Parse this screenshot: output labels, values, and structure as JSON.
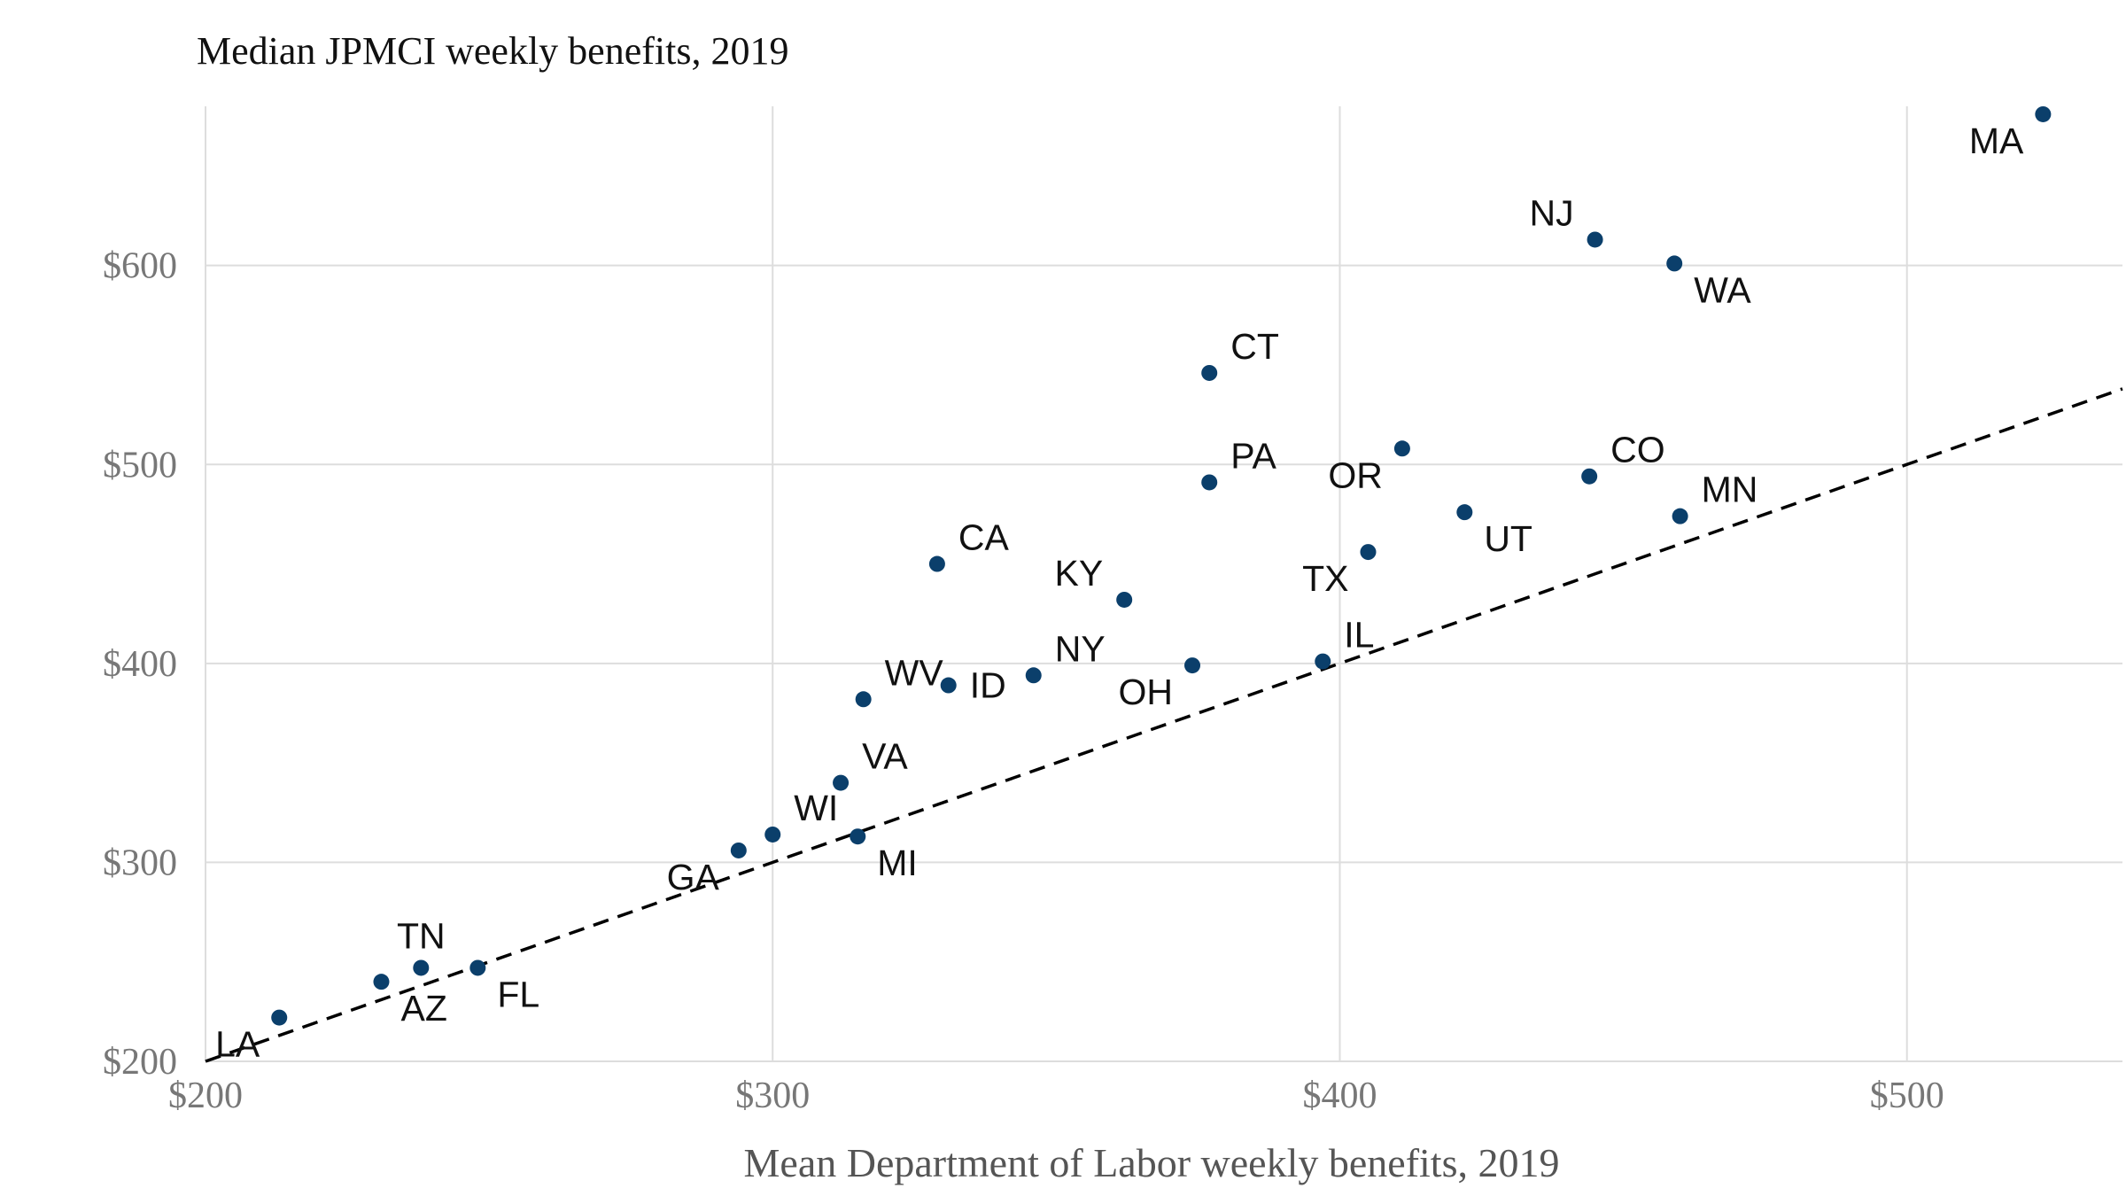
{
  "chart_data": {
    "type": "scatter",
    "title": "Median JPMCI weekly benefits, 2019",
    "xlabel": "Mean Department of Labor weekly benefits, 2019",
    "ylabel": "",
    "xlim": [
      200,
      538
    ],
    "ylim": [
      200,
      680
    ],
    "x_ticks": [
      200,
      300,
      400,
      500
    ],
    "x_tick_labels": [
      "$200",
      "$300",
      "$400",
      "$500"
    ],
    "y_ticks": [
      200,
      300,
      400,
      500,
      600
    ],
    "y_tick_labels": [
      "$200",
      "$300",
      "$400",
      "$500",
      "$600"
    ],
    "grid": true,
    "point_color": "#0b3f6b",
    "reference_line": {
      "style": "dashed",
      "color": "#000000",
      "slope": 1,
      "intercept": 0
    },
    "points": [
      {
        "label": "LA",
        "x": 213,
        "y": 222,
        "label_pos": "below-left"
      },
      {
        "label": "AZ",
        "x": 231,
        "y": 240,
        "label_pos": "below-right"
      },
      {
        "label": "TN",
        "x": 238,
        "y": 247,
        "label_pos": "above"
      },
      {
        "label": "FL",
        "x": 248,
        "y": 247,
        "label_pos": "below-right"
      },
      {
        "label": "GA",
        "x": 294,
        "y": 306,
        "label_pos": "below-left"
      },
      {
        "label": "WI",
        "x": 300,
        "y": 314,
        "label_pos": "above-right"
      },
      {
        "label": "VA",
        "x": 312,
        "y": 340,
        "label_pos": "above-right"
      },
      {
        "label": "MI",
        "x": 315,
        "y": 313,
        "label_pos": "below-right"
      },
      {
        "label": "WV",
        "x": 316,
        "y": 382,
        "label_pos": "above-right"
      },
      {
        "label": "CA",
        "x": 329,
        "y": 450,
        "label_pos": "above-right"
      },
      {
        "label": "ID",
        "x": 331,
        "y": 389,
        "label_pos": "right"
      },
      {
        "label": "NY",
        "x": 346,
        "y": 394,
        "label_pos": "above-right"
      },
      {
        "label": "KY",
        "x": 362,
        "y": 432,
        "label_pos": "above-left"
      },
      {
        "label": "OH",
        "x": 374,
        "y": 399,
        "label_pos": "below-left"
      },
      {
        "label": "PA",
        "x": 377,
        "y": 491,
        "label_pos": "above-right"
      },
      {
        "label": "CT",
        "x": 377,
        "y": 546,
        "label_pos": "above-right"
      },
      {
        "label": "IL",
        "x": 397,
        "y": 401,
        "label_pos": "above-right"
      },
      {
        "label": "TX",
        "x": 405,
        "y": 456,
        "label_pos": "below-left"
      },
      {
        "label": "OR",
        "x": 411,
        "y": 508,
        "label_pos": "below-left"
      },
      {
        "label": "UT",
        "x": 422,
        "y": 476,
        "label_pos": "below-right"
      },
      {
        "label": "CO",
        "x": 444,
        "y": 494,
        "label_pos": "above-right"
      },
      {
        "label": "NJ",
        "x": 445,
        "y": 613,
        "label_pos": "above-left"
      },
      {
        "label": "WA",
        "x": 459,
        "y": 601,
        "label_pos": "below-right"
      },
      {
        "label": "MN",
        "x": 460,
        "y": 474,
        "label_pos": "above-right"
      },
      {
        "label": "MA",
        "x": 524,
        "y": 676,
        "label_pos": "below-left"
      }
    ]
  }
}
